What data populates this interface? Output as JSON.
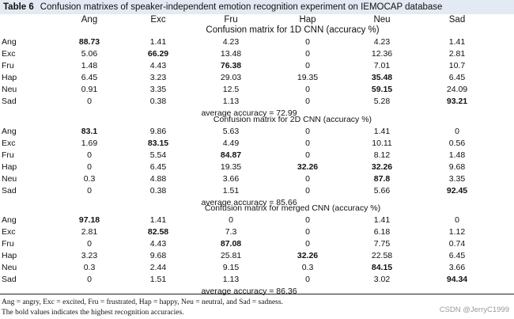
{
  "caption": {
    "label": "Table 6",
    "text": "Confusion matrixes of speaker-independent emotion recognition experiment on IEMOCAP database"
  },
  "columns": [
    "Ang",
    "Exc",
    "Fru",
    "Hap",
    "Neu",
    "Sad"
  ],
  "blocks": [
    {
      "title": "Confusion matrix for 1D CNN (accuracy %)",
      "rows": [
        {
          "label": "Ang",
          "values": [
            "88.73",
            "1.41",
            "4.23",
            "0",
            "4.23",
            "1.41"
          ],
          "bold": 0
        },
        {
          "label": "Exc",
          "values": [
            "5.06",
            "66.29",
            "13.48",
            "0",
            "12.36",
            "2.81"
          ],
          "bold": 1
        },
        {
          "label": "Fru",
          "values": [
            "1.48",
            "4.43",
            "76.38",
            "0",
            "7.01",
            "10.7"
          ],
          "bold": 2
        },
        {
          "label": "Hap",
          "values": [
            "6.45",
            "3.23",
            "29.03",
            "19.35",
            "35.48",
            "6.45"
          ],
          "bold": 4
        },
        {
          "label": "Neu",
          "values": [
            "0.91",
            "3.35",
            "12.5",
            "0",
            "59.15",
            "24.09"
          ],
          "bold": 4
        },
        {
          "label": "Sad",
          "values": [
            "0",
            "0.38",
            "1.13",
            "0",
            "5.28",
            "93.21"
          ],
          "bold": 5
        }
      ],
      "average": "average accuracy = 72.99"
    },
    {
      "title": "Confusion matrix for 2D CNN (accuracy %)",
      "rows": [
        {
          "label": "Ang",
          "values": [
            "83.1",
            "9.86",
            "5.63",
            "0",
            "1.41",
            "0"
          ],
          "bold": 0
        },
        {
          "label": "Exc",
          "values": [
            "1.69",
            "83.15",
            "4.49",
            "0",
            "10.11",
            "0.56"
          ],
          "bold": 1
        },
        {
          "label": "Fru",
          "values": [
            "0",
            "5.54",
            "84.87",
            "0",
            "8.12",
            "1.48"
          ],
          "bold": 2
        },
        {
          "label": "Hap",
          "values": [
            "0",
            "6.45",
            "19.35",
            "32.26",
            "32.26",
            "9.68"
          ],
          "bold": [
            3,
            4
          ]
        },
        {
          "label": "Neu",
          "values": [
            "0.3",
            "4.88",
            "3.66",
            "0",
            "87.8",
            "3.35"
          ],
          "bold": 4
        },
        {
          "label": "Sad",
          "values": [
            "0",
            "0.38",
            "1.51",
            "0",
            "5.66",
            "92.45"
          ],
          "bold": 5
        }
      ],
      "average": "average accuracy = 85.66"
    },
    {
      "title": "Confusion matrix for merged CNN (accuracy %)",
      "rows": [
        {
          "label": "Ang",
          "values": [
            "97.18",
            "1.41",
            "0",
            "0",
            "1.41",
            "0"
          ],
          "bold": 0
        },
        {
          "label": "Exc",
          "values": [
            "2.81",
            "82.58",
            "7.3",
            "0",
            "6.18",
            "1.12"
          ],
          "bold": 1
        },
        {
          "label": "Fru",
          "values": [
            "0",
            "4.43",
            "87.08",
            "0",
            "7.75",
            "0.74"
          ],
          "bold": 2
        },
        {
          "label": "Hap",
          "values": [
            "3.23",
            "9.68",
            "25.81",
            "32.26",
            "22.58",
            "6.45"
          ],
          "bold": 3
        },
        {
          "label": "Neu",
          "values": [
            "0.3",
            "2.44",
            "9.15",
            "0.3",
            "84.15",
            "3.66"
          ],
          "bold": 4
        },
        {
          "label": "Sad",
          "values": [
            "0",
            "1.51",
            "1.13",
            "0",
            "3.02",
            "94.34"
          ],
          "bold": 5
        }
      ],
      "average": "average accuracy = 86.36"
    }
  ],
  "footnotes": [
    "Ang = angry, Exc = excited, Fru = frustrated, Hap = happy, Neu = neutral, and Sad = sadness.",
    "The bold values indicates the highest recognition accuracies."
  ],
  "watermark": "CSDN @JerryC1999"
}
